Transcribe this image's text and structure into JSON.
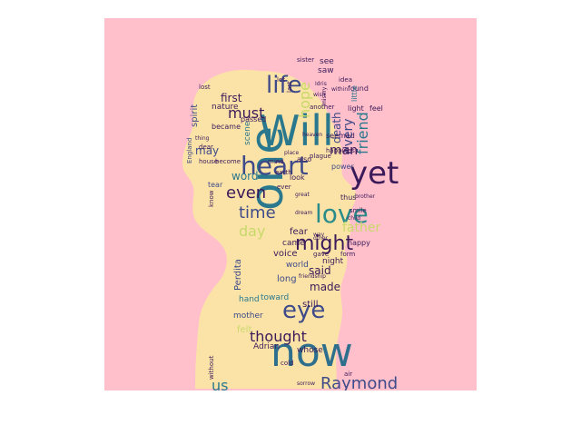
{
  "background_color": "#ffc0cb",
  "silhouette_color": "#fbe3a8",
  "palette": [
    "#3b1a5a",
    "#3e4a89",
    "#2a788e",
    "#22a884",
    "#7ad151",
    "#fde725",
    "#f5d58c"
  ],
  "words": [
    {
      "text": "Will",
      "color": "#2a788e"
    },
    {
      "text": "now",
      "color": "#2f6f8e"
    },
    {
      "text": "one",
      "color": "#2a788e"
    },
    {
      "text": "yet",
      "color": "#3b1a5a"
    },
    {
      "text": "heart",
      "color": "#3e4a89"
    },
    {
      "text": "life",
      "color": "#3e4a89"
    },
    {
      "text": "love",
      "color": "#2a8c8a"
    },
    {
      "text": "eye",
      "color": "#3e4a89"
    },
    {
      "text": "might",
      "color": "#3b1a5a"
    },
    {
      "text": "Raymond",
      "color": "#3e4a89"
    },
    {
      "text": "thought",
      "color": "#3b1a5a"
    },
    {
      "text": "must",
      "color": "#3b1a5a"
    },
    {
      "text": "time",
      "color": "#3e4a89"
    },
    {
      "text": "even",
      "color": "#3b1a5a"
    },
    {
      "text": "day",
      "color": "#c8d86a"
    },
    {
      "text": "father",
      "color": "#c8d86a"
    },
    {
      "text": "friend",
      "color": "#2a788e"
    },
    {
      "text": "every",
      "color": "#3e4a89"
    },
    {
      "text": "man",
      "color": "#3b1a5a"
    },
    {
      "text": "first",
      "color": "#3b1a5a"
    },
    {
      "text": "word",
      "color": "#2a788e"
    },
    {
      "text": "may",
      "color": "#3e4a89"
    },
    {
      "text": "us",
      "color": "#2a788e"
    },
    {
      "text": "hope",
      "color": "#c8d86a"
    },
    {
      "text": "death",
      "color": "#3e4a89"
    },
    {
      "text": "made",
      "color": "#3b1a5a"
    },
    {
      "text": "said",
      "color": "#3b1a5a"
    },
    {
      "text": "long",
      "color": "#3e4a89"
    },
    {
      "text": "still",
      "color": "#3b1a5a"
    },
    {
      "text": "Perdita",
      "color": "#3e4a89"
    },
    {
      "text": "voice",
      "color": "#3b1a5a"
    },
    {
      "text": "fear",
      "color": "#3b1a5a"
    },
    {
      "text": "spirit",
      "color": "#3e4a89"
    },
    {
      "text": "nature",
      "color": "#3b1a5a"
    },
    {
      "text": "scene",
      "color": "#2a788e"
    },
    {
      "text": "saw",
      "color": "#3b1a5a"
    },
    {
      "text": "see",
      "color": "#3b1a5a"
    },
    {
      "text": "felt",
      "color": "#c8d86a"
    },
    {
      "text": "whose",
      "color": "#3b1a5a"
    },
    {
      "text": "affection",
      "color": "#3e4a89"
    },
    {
      "text": "feeling",
      "color": "#3e4a89"
    },
    {
      "text": "soon",
      "color": "#3b1a5a"
    },
    {
      "text": "Adrian",
      "color": "#3b1a5a"
    },
    {
      "text": "toward",
      "color": "#2a788e"
    },
    {
      "text": "hand",
      "color": "#2a788e"
    },
    {
      "text": "mother",
      "color": "#3e4a89"
    },
    {
      "text": "world",
      "color": "#3e4a89"
    },
    {
      "text": "came",
      "color": "#3b1a5a"
    },
    {
      "text": "night",
      "color": "#3b1a5a"
    },
    {
      "text": "happy",
      "color": "#3b1a5a"
    },
    {
      "text": "found",
      "color": "#3b1a5a"
    },
    {
      "text": "little",
      "color": "#2a788e"
    },
    {
      "text": "light",
      "color": "#3b1a5a"
    },
    {
      "text": "feel",
      "color": "#3b1a5a"
    },
    {
      "text": "became",
      "color": "#3b1a5a"
    },
    {
      "text": "passed",
      "color": "#3b1a5a"
    },
    {
      "text": "tear",
      "color": "#3e4a89"
    },
    {
      "text": "power",
      "color": "#3e4a89"
    },
    {
      "text": "also",
      "color": "#3b1a5a"
    },
    {
      "text": "look",
      "color": "#3b1a5a"
    },
    {
      "text": "thus",
      "color": "#3b1a5a"
    },
    {
      "text": "seemed",
      "color": "#3b1a5a"
    },
    {
      "text": "happiness",
      "color": "#3b1a5a"
    },
    {
      "text": "lost",
      "color": "#3b1a5a"
    },
    {
      "text": "idea",
      "color": "#3b1a5a"
    },
    {
      "text": "England",
      "color": "#3e4a89"
    },
    {
      "text": "gave",
      "color": "#3b1a5a"
    },
    {
      "text": "form",
      "color": "#3b1a5a"
    },
    {
      "text": "air",
      "color": "#3b1a5a"
    },
    {
      "text": "without",
      "color": "#3b1a5a"
    },
    {
      "text": "dear",
      "color": "#3b1a5a"
    },
    {
      "text": "house",
      "color": "#3b1a5a"
    },
    {
      "text": "plague",
      "color": "#3b1a5a"
    },
    {
      "text": "smile",
      "color": "#3b1a5a"
    },
    {
      "text": "another",
      "color": "#3b1a5a"
    },
    {
      "text": "become",
      "color": "#3b1a5a"
    },
    {
      "text": "sister",
      "color": "#3b1a5a"
    },
    {
      "text": "cold",
      "color": "#3b1a5a"
    },
    {
      "text": "last",
      "color": "#3b1a5a"
    },
    {
      "text": "let",
      "color": "#3b1a5a"
    },
    {
      "text": "know",
      "color": "#3b1a5a"
    },
    {
      "text": "mind",
      "color": "#3b1a5a"
    },
    {
      "text": "earth",
      "color": "#3b1a5a"
    },
    {
      "text": "ever",
      "color": "#3b1a5a"
    },
    {
      "text": "child",
      "color": "#3b1a5a"
    },
    {
      "text": "within",
      "color": "#3b1a5a"
    },
    {
      "text": "great",
      "color": "#3b1a5a"
    },
    {
      "text": "other",
      "color": "#3b1a5a"
    },
    {
      "text": "brother",
      "color": "#3b1a5a"
    },
    {
      "text": "dream",
      "color": "#3b1a5a"
    },
    {
      "text": "heaven",
      "color": "#3b1a5a"
    },
    {
      "text": "misery",
      "color": "#3b1a5a"
    },
    {
      "text": "thing",
      "color": "#3b1a5a"
    },
    {
      "text": "Idris",
      "color": "#3b1a5a"
    },
    {
      "text": "way",
      "color": "#3b1a5a"
    },
    {
      "text": "place",
      "color": "#3b1a5a"
    },
    {
      "text": "sorrow",
      "color": "#3b1a5a"
    },
    {
      "text": "friendship",
      "color": "#3b1a5a"
    },
    {
      "text": "wish",
      "color": "#3b1a5a"
    }
  ]
}
